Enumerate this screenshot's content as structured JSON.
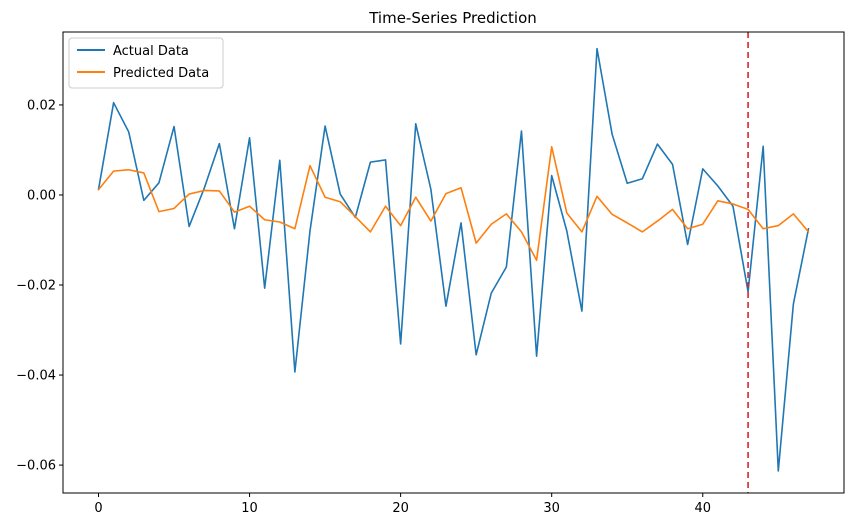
{
  "chart_data": {
    "type": "line",
    "title": "Time-Series Prediction",
    "xlabel": "",
    "ylabel": "",
    "xlim": [
      -2.35,
      49.35
    ],
    "ylim": [
      -0.0662,
      0.0362
    ],
    "x_ticks": [
      0,
      10,
      20,
      30,
      40
    ],
    "x_tick_labels": [
      "0",
      "10",
      "20",
      "30",
      "40"
    ],
    "y_ticks": [
      0.02,
      0.0,
      -0.02,
      -0.04,
      -0.06
    ],
    "y_tick_labels": [
      "0.02",
      "0.00",
      "−0.02",
      "−0.04",
      "−0.06"
    ],
    "grid": false,
    "legend_position": "upper-left",
    "vline": {
      "x": 43,
      "color": "#d62728",
      "style": "dashed"
    },
    "series": [
      {
        "name": "Actual Data",
        "color": "#1f77b4",
        "x": [
          0,
          1,
          2,
          3,
          4,
          5,
          6,
          7,
          8,
          9,
          10,
          11,
          12,
          13,
          14,
          15,
          16,
          17,
          18,
          19,
          20,
          21,
          22,
          23,
          24,
          25,
          26,
          27,
          28,
          29,
          30,
          31,
          32,
          33,
          34,
          35,
          36,
          37,
          38,
          39,
          40,
          41,
          42,
          43,
          44,
          45,
          46,
          47
        ],
        "values": [
          0.0012,
          0.0205,
          0.014,
          -0.0012,
          0.0027,
          0.0152,
          -0.007,
          0.0015,
          0.0114,
          -0.0075,
          0.0127,
          -0.0207,
          0.0077,
          -0.0393,
          -0.008,
          0.0153,
          0.0002,
          -0.005,
          0.0073,
          0.0078,
          -0.0331,
          0.0158,
          0.0013,
          -0.0247,
          -0.0062,
          -0.0355,
          -0.0218,
          -0.016,
          0.0142,
          -0.0358,
          0.0043,
          -0.008,
          -0.0258,
          0.0325,
          0.0135,
          0.0026,
          0.0036,
          0.0113,
          0.0068,
          -0.011,
          0.0058,
          0.002,
          -0.0025,
          -0.0215,
          0.0108,
          -0.0613,
          -0.0242,
          -0.0075
        ]
      },
      {
        "name": "Predicted Data",
        "color": "#ff7f0e",
        "x": [
          0,
          1,
          2,
          3,
          4,
          5,
          6,
          7,
          8,
          9,
          10,
          11,
          12,
          13,
          14,
          15,
          16,
          17,
          18,
          19,
          20,
          21,
          22,
          23,
          24,
          25,
          26,
          27,
          28,
          29,
          30,
          31,
          32,
          33,
          34,
          35,
          36,
          37,
          38,
          39,
          40,
          41,
          42,
          43,
          44,
          45,
          46,
          47
        ],
        "values": [
          0.0012,
          0.0053,
          0.0056,
          0.0049,
          -0.0037,
          -0.003,
          0.0002,
          0.001,
          0.0009,
          -0.0038,
          -0.0025,
          -0.0055,
          -0.006,
          -0.0075,
          0.0065,
          -0.0005,
          -0.0015,
          -0.0048,
          -0.0082,
          -0.0025,
          -0.0068,
          -0.0005,
          -0.0058,
          0.0003,
          0.0016,
          -0.0107,
          -0.0065,
          -0.0042,
          -0.0082,
          -0.0145,
          0.0107,
          -0.004,
          -0.0082,
          -0.0003,
          -0.0043,
          -0.0062,
          -0.0082,
          -0.0058,
          -0.0032,
          -0.0075,
          -0.0065,
          -0.0013,
          -0.002,
          -0.0032,
          -0.0075,
          -0.0068,
          -0.0042,
          -0.0082
        ]
      }
    ]
  }
}
